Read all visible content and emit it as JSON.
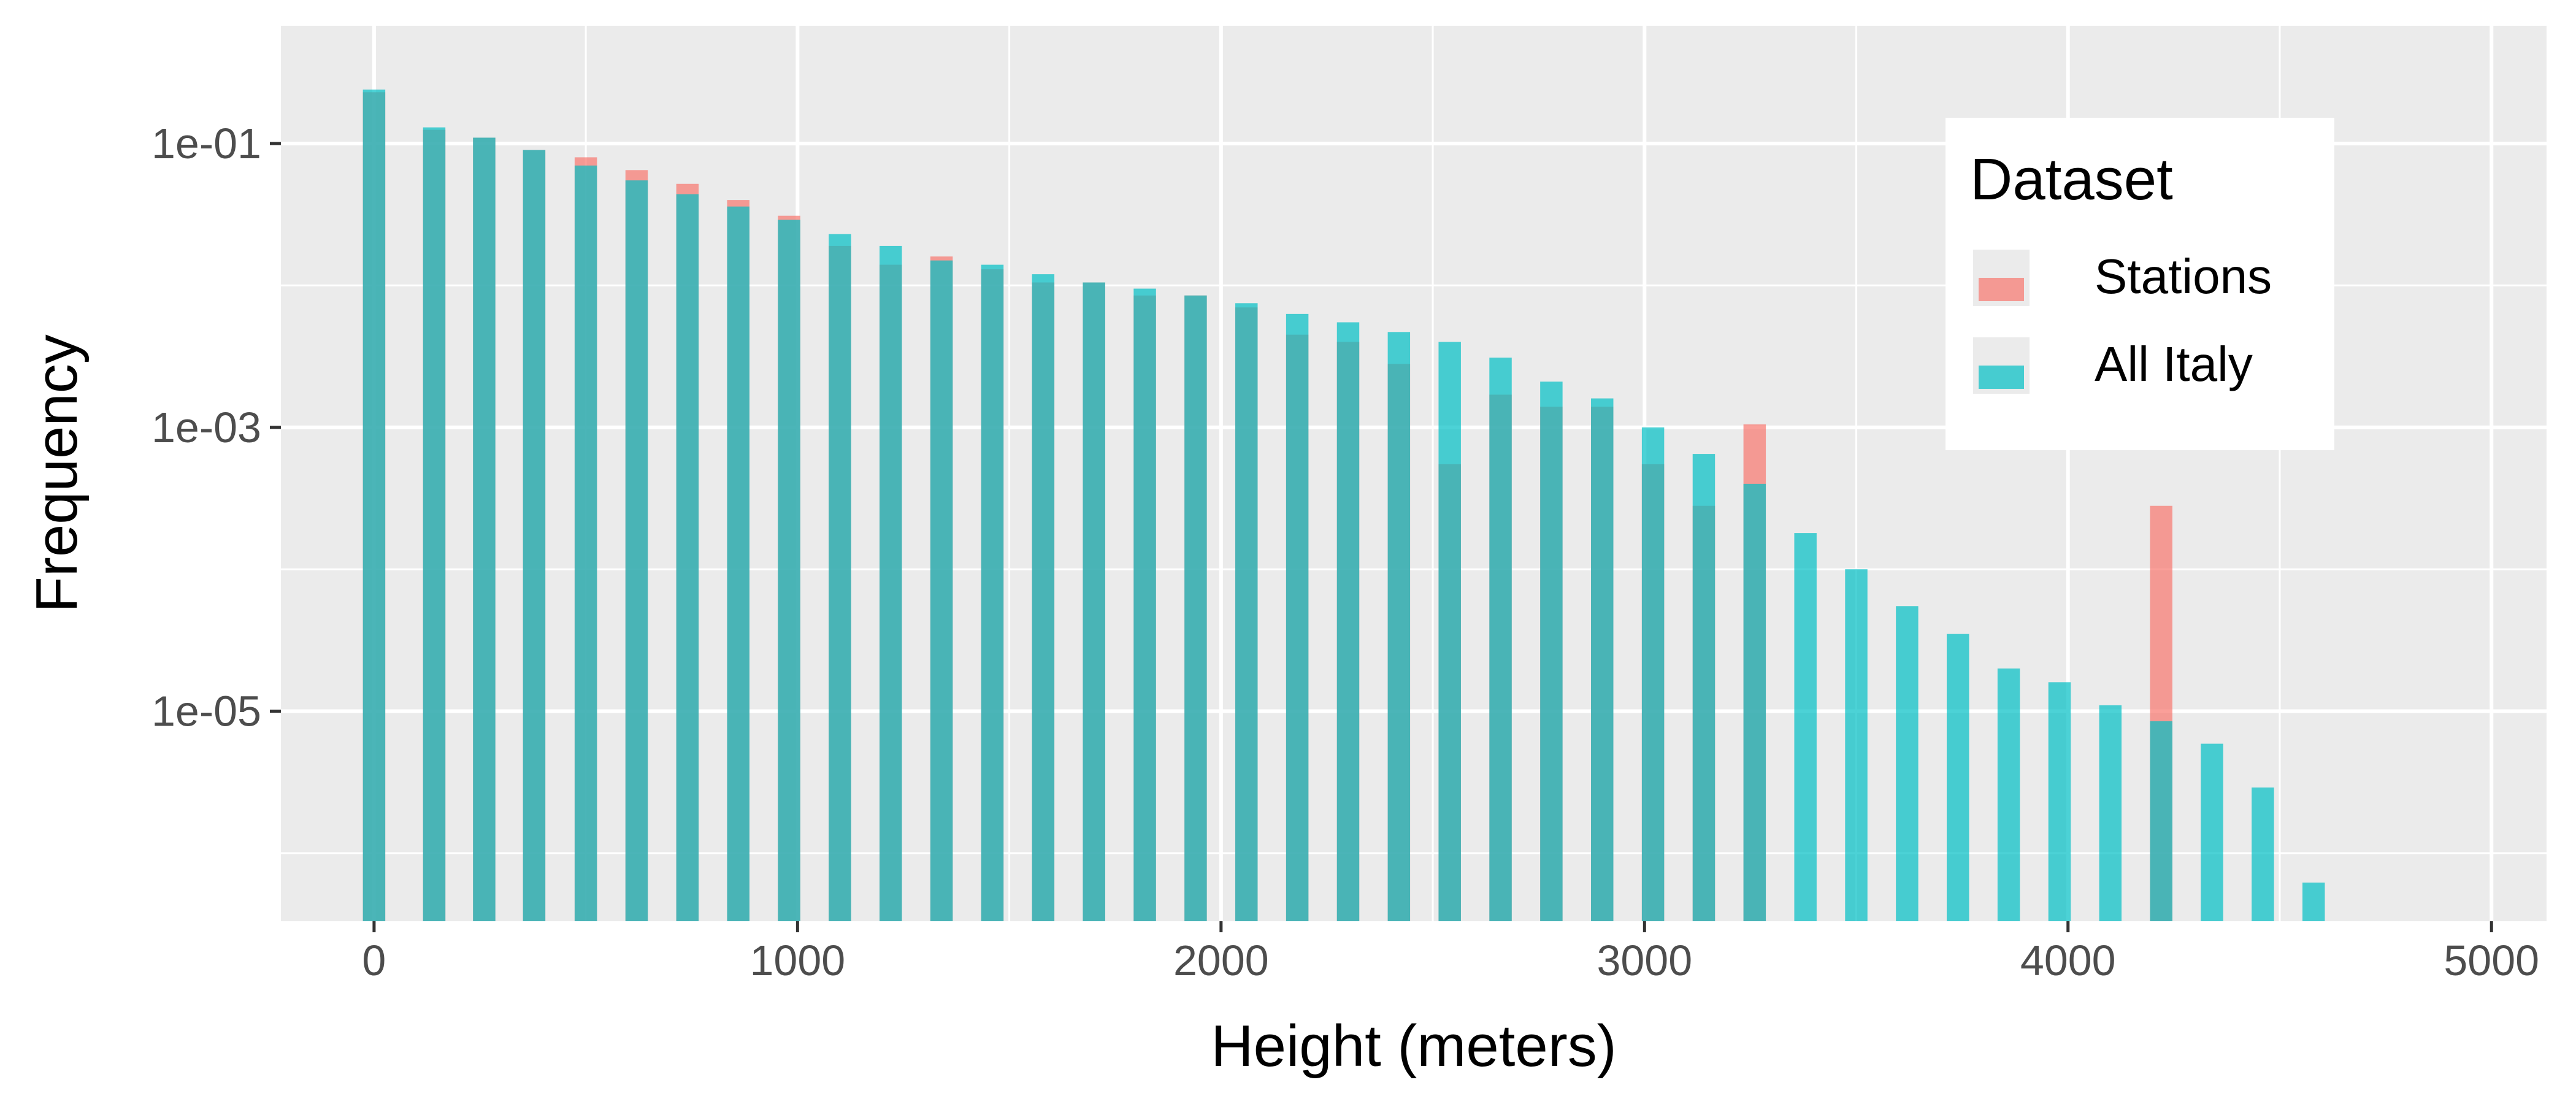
{
  "chart_data": {
    "type": "bar",
    "xlabel": "Height (meters)",
    "ylabel": "Frequency",
    "xlim": [
      -220,
      5130
    ],
    "ylim_log10": [
      -6.48,
      -0.17
    ],
    "y_scale": "log10",
    "x_ticks": [
      0,
      1000,
      2000,
      3000,
      4000,
      5000
    ],
    "x_tick_labels": [
      "0",
      "1000",
      "2000",
      "3000",
      "4000",
      "5000"
    ],
    "y_ticks": [
      0.1,
      0.001,
      1e-05
    ],
    "y_tick_labels": [
      "1e-01",
      "1e-03",
      "1e-05"
    ],
    "grid": true,
    "legend": {
      "title": "Dataset",
      "position": "top-right",
      "entries": [
        "Stations",
        "All Italy"
      ]
    },
    "bin_width": 120,
    "x": [
      0,
      142,
      260,
      378,
      500,
      620,
      740,
      860,
      980,
      1100,
      1220,
      1340,
      1460,
      1580,
      1700,
      1820,
      1940,
      2060,
      2180,
      2300,
      2420,
      2540,
      2660,
      2780,
      2900,
      3020,
      3140,
      3260,
      3380,
      3500,
      3620,
      3740,
      3860,
      3980,
      4100,
      4220,
      4340,
      4460,
      4580
    ],
    "series": [
      {
        "name": "Stations",
        "color": "#F8766D",
        "values": [
          0.23,
          0.125,
          0.11,
          0.09,
          0.08,
          0.065,
          0.052,
          0.04,
          0.031,
          0.019,
          0.014,
          0.016,
          0.013,
          0.0105,
          0.0105,
          0.0085,
          0.0085,
          0.007,
          0.0045,
          0.004,
          0.0028,
          0.00055,
          0.0017,
          0.0014,
          0.0014,
          0.00055,
          0.00028,
          0.00105,
          null,
          null,
          null,
          null,
          null,
          null,
          null,
          0.00028,
          null,
          null,
          null
        ]
      },
      {
        "name": "All Italy",
        "color": "#00BFC4",
        "values": [
          0.24,
          0.13,
          0.11,
          0.09,
          0.07,
          0.055,
          0.044,
          0.036,
          0.029,
          0.023,
          0.019,
          0.015,
          0.014,
          0.012,
          0.0105,
          0.0095,
          0.0085,
          0.0075,
          0.0063,
          0.0055,
          0.0047,
          0.004,
          0.0031,
          0.0021,
          0.0016,
          0.001,
          0.00065,
          0.0004,
          0.00018,
          0.0001,
          5.5e-05,
          3.5e-05,
          2e-05,
          1.6e-05,
          1.1e-05,
          8.5e-06,
          5.9e-06,
          2.9e-06,
          6.2e-07
        ]
      }
    ]
  }
}
